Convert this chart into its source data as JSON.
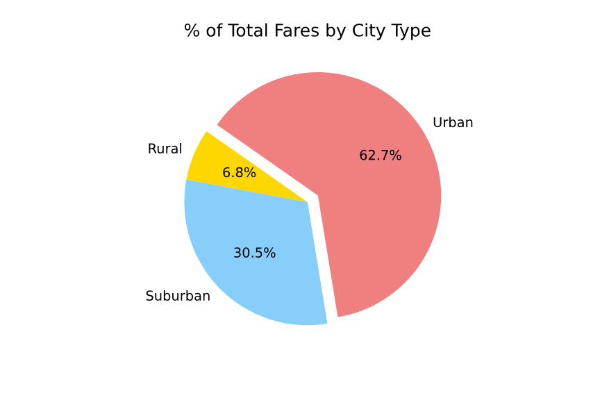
{
  "chart_data": {
    "type": "pie",
    "title": "% of Total Fares by City Type",
    "categories": [
      "Rural",
      "Suburban",
      "Urban"
    ],
    "values": [
      6.8,
      30.5,
      62.7
    ],
    "colors": [
      "#ffd700",
      "#87cefa",
      "#f08080"
    ],
    "value_labels": [
      "6.8%",
      "30.5%",
      "62.7%"
    ]
  }
}
